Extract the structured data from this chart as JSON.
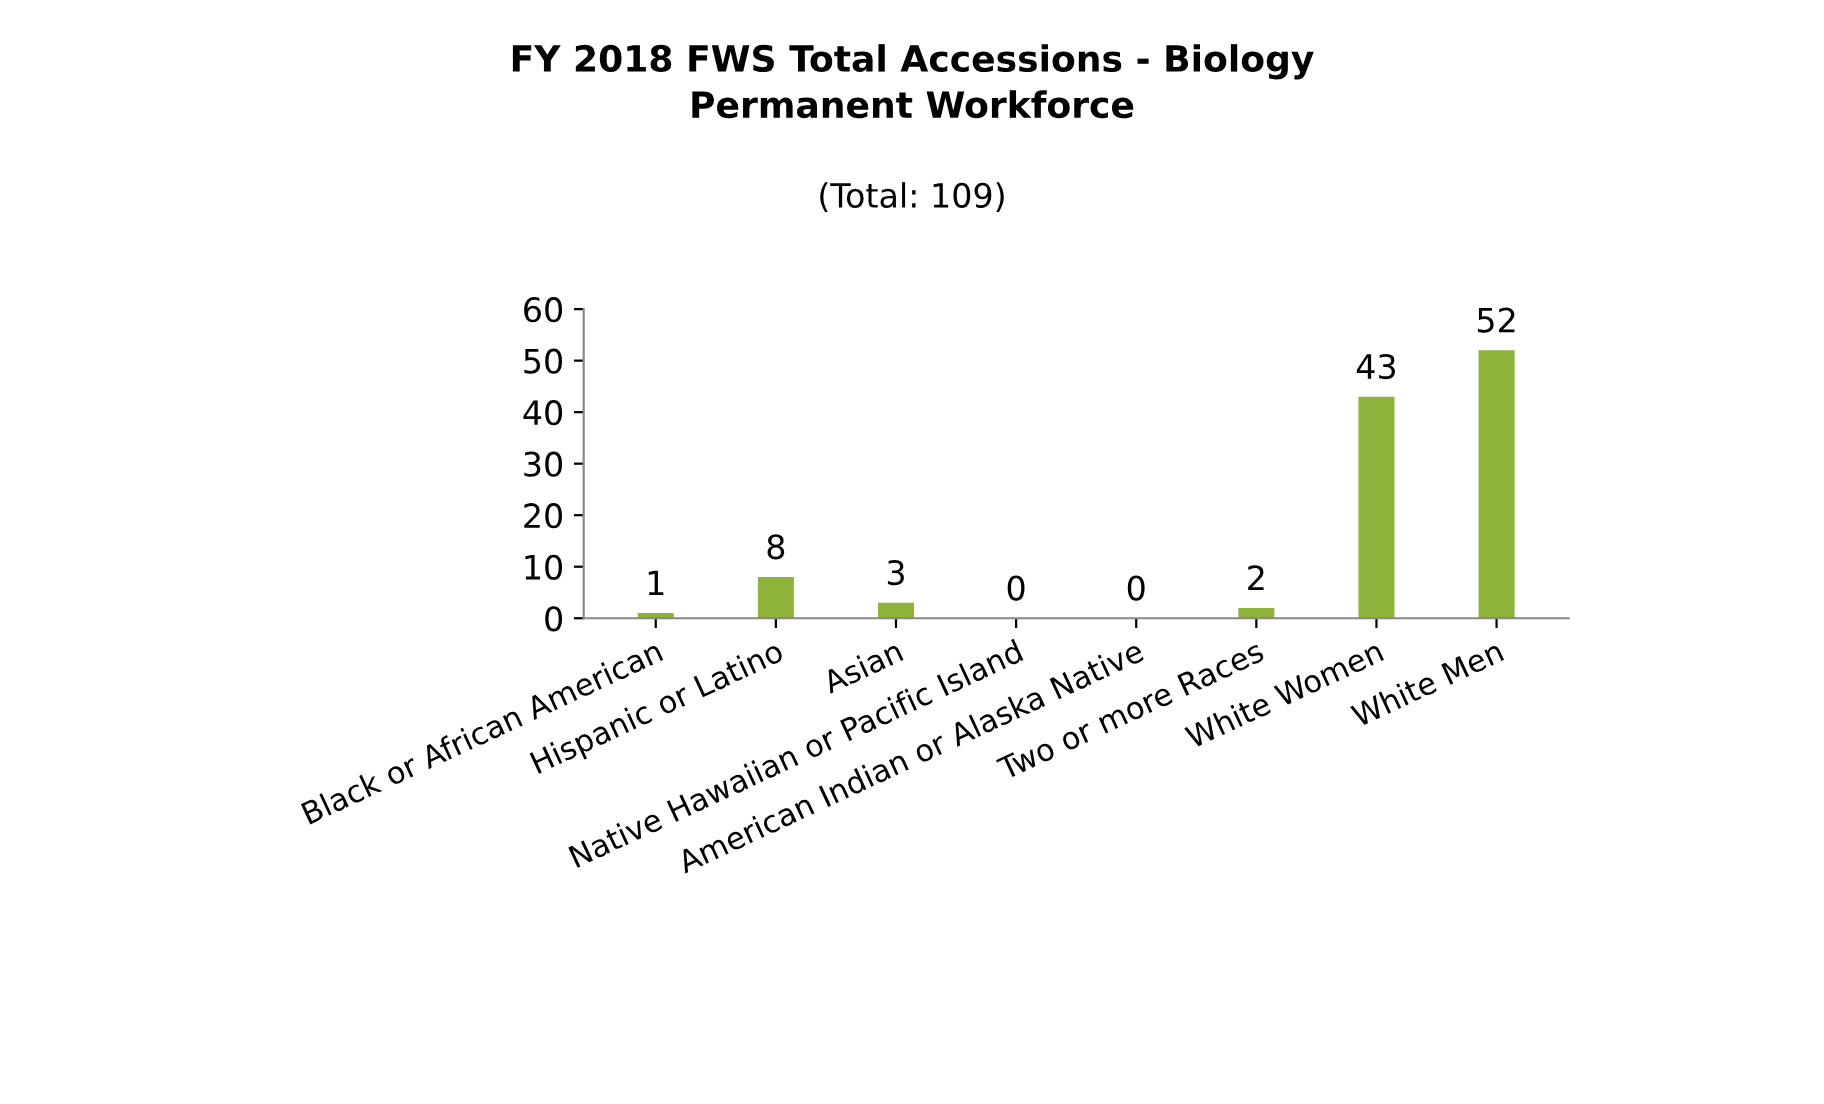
{
  "chart_data": {
    "type": "bar",
    "title": "FY 2018 FWS Total Accessions - Biology\nPermanent Workforce",
    "subtitle": "(Total: 109)",
    "categories": [
      "Black or African American",
      "Hispanic or Latino",
      "Asian",
      "Native Hawaiian or Pacific Island",
      "American Indian or Alaska Native",
      "Two or more Races",
      "White Women",
      "White Men"
    ],
    "values": [
      1,
      8,
      3,
      0,
      0,
      2,
      43,
      52
    ],
    "color": "#8db33a",
    "ylim": [
      0,
      60
    ],
    "yticks": [
      0,
      10,
      20,
      30,
      40,
      50,
      60
    ],
    "data_labels": true,
    "grid": false
  }
}
